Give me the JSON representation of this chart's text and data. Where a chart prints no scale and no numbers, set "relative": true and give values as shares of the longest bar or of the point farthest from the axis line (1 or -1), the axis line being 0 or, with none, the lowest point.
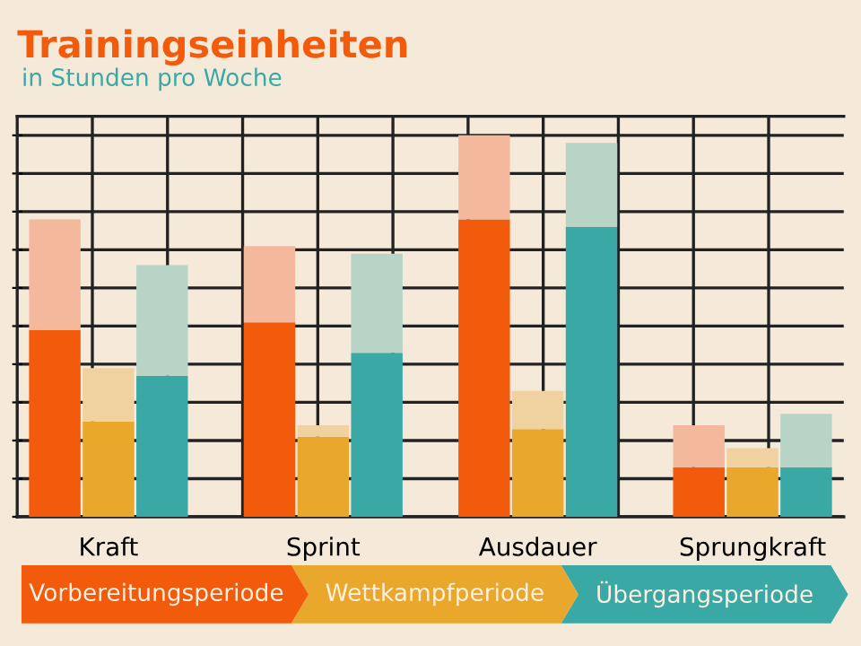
{
  "chart_data": {
    "type": "bar",
    "title": "Trainingseinheiten",
    "subtitle": "in Stunden pro Woche",
    "relative": true,
    "grid": true,
    "stacked": true,
    "categories": [
      null,
      "Kraft",
      null,
      null,
      null,
      "Sprint",
      null,
      null,
      null,
      "Ausdauer",
      null,
      null,
      null,
      "Sprungkraft",
      null
    ],
    "series": [
      {
        "colors": [
          "#f25a0c",
          "#e9a82c",
          "#3aa9a6",
          null,
          "#f25a0c",
          "#e9a82c",
          "#3aa9a6",
          null,
          "#f25a0c",
          "#e9a82c",
          "#3aa9a6",
          null,
          "#f25a0c",
          "#e9a82c",
          "#3aa9a6"
        ],
        "values": [
          0.49,
          0.25,
          0.37,
          null,
          0.51,
          0.21,
          0.43,
          null,
          0.78,
          0.23,
          0.76,
          null,
          0.13,
          0.13,
          0.13
        ]
      },
      {
        "colors": [
          "#f4b99c",
          "#f0d2a0",
          "#b8d4c6",
          null,
          "#f4b99c",
          "#f0d2a0",
          "#b8d4c6",
          null,
          "#f4b99c",
          "#f0d2a0",
          "#b8d4c6",
          null,
          "#f4b99c",
          "#f0d2a0",
          "#b8d4c6"
        ],
        "values": [
          0.29,
          0.14,
          0.29,
          null,
          0.2,
          0.03,
          0.26,
          null,
          0.22,
          0.1,
          0.22,
          null,
          0.11,
          0.05,
          0.14
        ]
      }
    ],
    "annotations": [
      "Vorbereitungsperiode",
      "Wettkampfperiode",
      "Übergangsperiode"
    ]
  }
}
